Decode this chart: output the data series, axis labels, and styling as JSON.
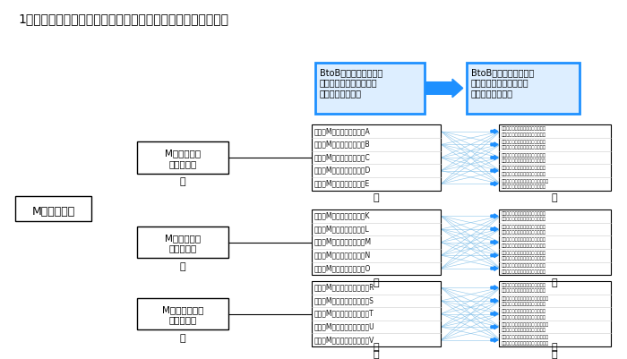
{
  "title": "1．流れ図仕入データの流れ　ホテルから取引先へ発注データ",
  "bg_color": "#ffffff",
  "box1_text": "BtoBプラットフォーム\nでホテルの部門は商品を\n取引先へ発注する",
  "box2_text": "BtoBプラットフォーム\nで取引先は商品をホテル\n部門から受注する",
  "box_border_color": "#1E90FF",
  "box_bg_color": "#DDEEFF",
  "arrow_color": "#1E90FF",
  "honbu_label": "Mホテル本部",
  "hotel_groups": [
    {
      "hotel_box": "Mホテル東京\n仕入データ",
      "departments": [
        "買手　Mホテル東京　部門A",
        "買手　Mホテル東京　部門B",
        "買手　Mホテル東京　部門C",
        "買手　Mホテル東京　部門D",
        "買手　Mホテル東京　部門E"
      ]
    },
    {
      "hotel_box": "Mホテル大阪\n仕入データ",
      "departments": [
        "買手　Mホテル大阪　部門K",
        "買手　Mホテル大阪　部門L",
        "買手　Mホテル大阪　部門M",
        "買手　Mホテル大阪　部門N",
        "買手　Mホテル大阪　部門O"
      ]
    },
    {
      "hotel_box": "Mホテル名古屋\n仕入データ",
      "departments": [
        "買手　Mホテル名古屋　部門R",
        "買手　Mホテル名古屋　部門S",
        "買手　Mホテル名古屋　部門T",
        "買手　Mホテル名古屋　部門U",
        "買手　Mホテル名古屋　部門V"
      ]
    }
  ],
  "supplier_groups": [
    [
      [
        "売手　取引先東京　肉の店　　請書",
        "売手　取引先東京　内藤商店　請書"
      ],
      [
        "売手　取引先東京　盛道の店　請書",
        "売手　取引先東京　参上　　　請書"
      ],
      [
        "売手　取引先東京　八百屋　　請書",
        "売手　取引先東京　野菜店　　請書"
      ],
      [
        "売手　取引先東京　鈴木の店　請書",
        "売手　取引先東京　魚屋　　　請書"
      ],
      [
        "売手　取引先東京　食材商品店　請書",
        "売手　取引先東京　食材屋　　請書"
      ]
    ],
    [
      [
        "売手　取引先大阪　にくの店　請書",
        "売手　取引先大阪　みいど　　請書"
      ],
      [
        "売手　取引先大阪　さかなや　請書",
        "売手　取引先大阪　もとこ屋　請書"
      ],
      [
        "売手　取引先大阪　やさい屋　請書",
        "売手　取引先大阪　野菜農場　請書"
      ],
      [
        "売手　取引先大阪　飲み物店　請書",
        "売手　取引先大阪　ワイン店　請書"
      ],
      [
        "売手　取引先大阪　食材商店　請書",
        "売手　取引先大阪　片瀬商店　請書"
      ]
    ],
    [
      [
        "売手　取引先名古屋　肉屋　　請書",
        "売手　取引先名古屋　ミート　請書"
      ],
      [
        "売手　取引先名古屋　さかな屋　請書",
        "売手　取引先名古屋　魚の店　請書"
      ],
      [
        "売手　取引先名古屋　八百屋　請書",
        "売手　取引先名古屋　ベジタ　請書"
      ],
      [
        "売手　取引先名古屋　鈴木の店　請書",
        "売手　取引先名古屋　日本橋　請書"
      ],
      [
        "売手　取引先名古屋　食品の店　請書",
        "売手　取引先名古屋　食材商店　請書"
      ]
    ]
  ]
}
